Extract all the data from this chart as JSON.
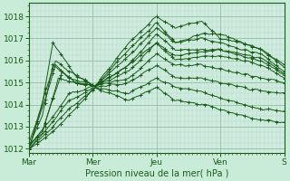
{
  "title": "",
  "xlabel": "Pression niveau de la mer( hPa )",
  "ylabel": "",
  "background_color": "#c8ecd8",
  "plot_bg_color": "#d0ece0",
  "line_color": "#1a5c1a",
  "grid_major_color": "#90c0a0",
  "grid_minor_color": "#b0d8c0",
  "ylim": [
    1011.8,
    1018.6
  ],
  "yticks": [
    1012,
    1013,
    1014,
    1015,
    1016,
    1017,
    1018
  ],
  "day_labels": [
    "Mar",
    "Mer",
    "Jeu",
    "Ven",
    "S"
  ],
  "day_positions": [
    0,
    48,
    96,
    144,
    192
  ],
  "xlim": [
    0,
    192
  ],
  "marker": "+",
  "markersize": 3,
  "linewidth": 0.7,
  "markevery": 6
}
